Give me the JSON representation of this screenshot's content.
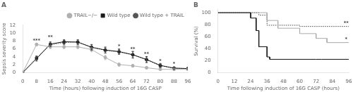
{
  "chart_data": [
    {
      "type": "line",
      "title": "A",
      "xlabel": "Time (hours) following induction of 16G CASP",
      "ylabel": "Sepsis severity score",
      "x": [
        0,
        8,
        16,
        24,
        32,
        40,
        48,
        56,
        64,
        72,
        80,
        88,
        96
      ],
      "xlim": [
        0,
        96
      ],
      "ylim": [
        0,
        12
      ],
      "xticks": [
        0,
        8,
        16,
        24,
        32,
        40,
        48,
        56,
        64,
        72,
        80,
        88,
        96
      ],
      "yticks": [
        0,
        2,
        4,
        6,
        8,
        10,
        12
      ],
      "grid": false,
      "legend": "upper right",
      "series": [
        {
          "name": "TRAIL−/−",
          "color": "#b0b0b0",
          "marker": "circle",
          "line_style": "solid",
          "values": [
            0,
            7.1,
            6.5,
            6.5,
            6.5,
            5.8,
            3.8,
            2.0,
            1.7,
            1.2,
            0.8,
            0.8,
            0.8
          ],
          "yerr": [
            0,
            0.35,
            0.45,
            0.45,
            0.45,
            0.55,
            0.55,
            0.4,
            0.35,
            0.3,
            0.2,
            0.2,
            0.15
          ]
        },
        {
          "name": "Wild type",
          "color": "#1a1a1a",
          "marker": "square",
          "line_style": "solid",
          "values": [
            0,
            3.5,
            7.2,
            7.8,
            7.7,
            6.4,
            5.7,
            5.3,
            4.5,
            3.3,
            1.8,
            1.1,
            1.0
          ],
          "yerr": [
            0,
            0.6,
            0.55,
            0.5,
            0.6,
            0.7,
            0.75,
            0.65,
            0.85,
            0.75,
            0.5,
            0.3,
            0.2
          ]
        },
        {
          "name": "Wild type + TRAIL",
          "color": "#555555",
          "marker": "circle",
          "line_style": "dotted",
          "values": [
            0,
            3.7,
            7.0,
            7.6,
            7.7,
            6.4,
            5.6,
            5.2,
            4.5,
            3.2,
            1.7,
            1.1,
            1.0
          ],
          "yerr": [
            0,
            0.5,
            0.5,
            0.5,
            0.55,
            0.65,
            0.7,
            0.6,
            0.8,
            0.7,
            0.45,
            0.3,
            0.2
          ]
        }
      ],
      "annotations": [
        {
          "x": 8,
          "y": 7.8,
          "text": "***"
        },
        {
          "x": 16,
          "y": 8.6,
          "text": "**"
        },
        {
          "x": 56,
          "y": 6.3,
          "text": "*"
        },
        {
          "x": 64,
          "y": 5.65,
          "text": "**"
        },
        {
          "x": 72,
          "y": 4.4,
          "text": "**"
        },
        {
          "x": 80,
          "y": 2.6,
          "text": "*"
        },
        {
          "x": 88,
          "y": 1.8,
          "text": "*"
        }
      ]
    },
    {
      "type": "line",
      "title": "B",
      "xlabel": "Time following induction of 16G CASP (hours)",
      "ylabel": "Survival (%)",
      "xlim": [
        0,
        96
      ],
      "ylim": [
        0,
        105
      ],
      "xticks": [
        0,
        12,
        24,
        36,
        48,
        60,
        72,
        84,
        96
      ],
      "yticks": [
        0,
        20,
        40,
        60,
        80,
        100
      ],
      "grid": false,
      "series": [
        {
          "name": "Wild type",
          "color": "#111111",
          "line_style": "solid",
          "x": [
            0,
            24,
            24,
            28,
            28,
            30,
            30,
            36,
            36,
            38,
            38,
            72,
            72,
            76,
            76,
            96
          ],
          "values": [
            100,
            100,
            91,
            91,
            70,
            70,
            43,
            43,
            26,
            26,
            22,
            22,
            22,
            22,
            22,
            22
          ]
        },
        {
          "name": "TRAIL−/−",
          "color": "#aaaaaa",
          "line_style": "solid",
          "x": [
            0,
            36,
            36,
            44,
            44,
            60,
            60,
            72,
            72,
            80,
            80,
            96
          ],
          "values": [
            100,
            100,
            87,
            87,
            74,
            74,
            65,
            65,
            57,
            57,
            50,
            50
          ]
        },
        {
          "name": "Wild type + TRAIL",
          "color": "#444444",
          "line_style": "dotted",
          "x": [
            0,
            30,
            30,
            36,
            36,
            60,
            60,
            96
          ],
          "values": [
            100,
            100,
            96,
            96,
            79,
            79,
            77,
            77
          ]
        }
      ],
      "annotations": [
        {
          "x": 94,
          "y": 81,
          "text": "**"
        },
        {
          "x": 94,
          "y": 53,
          "text": "*"
        }
      ]
    }
  ]
}
